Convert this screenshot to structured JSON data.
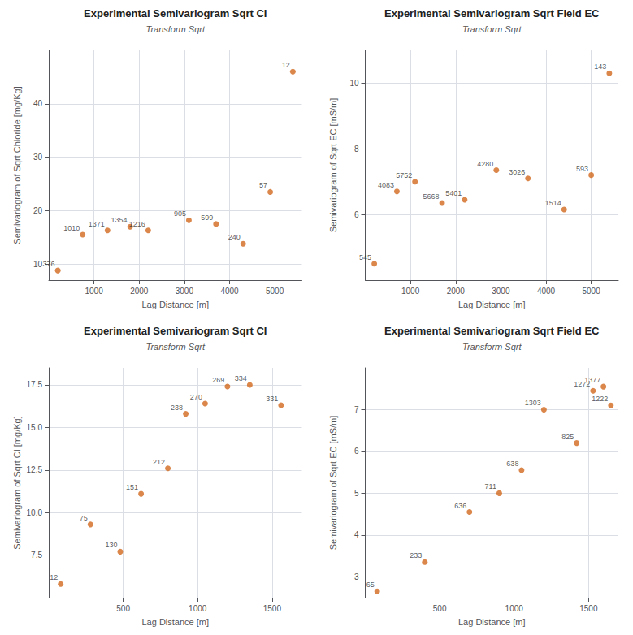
{
  "chart_data": [
    {
      "type": "scatter",
      "title": "Experimental Semivariogram Sqrt CI",
      "subtitle": "Transform Sqrt",
      "xlabel": "Lag Distance [m]",
      "ylabel": "Semivariogram of Sqrt Chloride [mg/Kg]",
      "x": [
        200,
        750,
        1300,
        1800,
        2200,
        3100,
        3700,
        4300,
        4900,
        5400
      ],
      "values": [
        8.8,
        15.5,
        16.3,
        17.0,
        16.3,
        18.2,
        17.5,
        13.8,
        23.5,
        46.0
      ],
      "annotations": [
        "376",
        "1010",
        "1371",
        "1354",
        "1216",
        "905",
        "599",
        "240",
        "57",
        "12"
      ],
      "color": "#D2691E",
      "xlim": [
        0,
        5600
      ],
      "ylim": [
        7,
        50
      ],
      "xticks": [
        1000,
        2000,
        3000,
        4000,
        5000
      ],
      "yticks": [
        10,
        20,
        30,
        40
      ],
      "grid": true
    },
    {
      "type": "scatter",
      "title": "Experimental Semivariogram Sqrt Field EC",
      "subtitle": "Transform Sqrt",
      "xlabel": "Lag Distance [m]",
      "ylabel": "Semivariogram of Sqrt EC [mS/m]",
      "x": [
        200,
        700,
        1100,
        1700,
        2200,
        2900,
        3600,
        4400,
        5000,
        5400
      ],
      "values": [
        4.5,
        6.7,
        7.0,
        6.35,
        6.45,
        7.35,
        7.1,
        6.15,
        7.2,
        10.3
      ],
      "annotations": [
        "545",
        "4083",
        "5752",
        "5668",
        "5401",
        "4280",
        "3026",
        "1514",
        "593",
        "143"
      ],
      "color": "#D2691E",
      "xlim": [
        0,
        5600
      ],
      "ylim": [
        4,
        11
      ],
      "xticks": [
        1000,
        2000,
        3000,
        4000,
        5000
      ],
      "yticks": [
        6,
        8,
        10
      ],
      "grid": true
    },
    {
      "type": "scatter",
      "title": "Experimental Semivariogram Sqrt CI",
      "subtitle": "Transform Sqrt",
      "xlabel": "Lag Distance [m]",
      "ylabel": "Semivariogram of Sqrt CI [mg/Kg]",
      "x": [
        80,
        280,
        480,
        620,
        800,
        920,
        1050,
        1200,
        1350,
        1560
      ],
      "values": [
        5.8,
        9.3,
        7.7,
        11.1,
        12.6,
        15.8,
        16.4,
        17.4,
        17.5,
        16.3
      ],
      "annotations": [
        "12",
        "75",
        "130",
        "151",
        "212",
        "238",
        "270",
        "269",
        "334",
        "331"
      ],
      "color": "#D2691E",
      "xlim": [
        0,
        1700
      ],
      "ylim": [
        5,
        18.5
      ],
      "xticks": [
        500,
        1000,
        1500
      ],
      "yticks": [
        7.5,
        {
          "value": 10,
          "label": "10.0"
        },
        12.5,
        {
          "value": 15,
          "label": "15.0"
        },
        17.5
      ],
      "grid": true
    },
    {
      "type": "scatter",
      "title": "Experimental Semivariogram Sqrt Field EC",
      "subtitle": "Transform Sqrt",
      "xlabel": "Lag Distance [m]",
      "ylabel": "Semivariogram of Sqrt EC [mS/m]",
      "x": [
        80,
        400,
        700,
        900,
        1050,
        1200,
        1420,
        1530,
        1600,
        1650
      ],
      "values": [
        2.65,
        3.35,
        4.55,
        5.0,
        5.55,
        7.0,
        6.2,
        7.45,
        7.55,
        7.1
      ],
      "annotations": [
        "65",
        "233",
        "636",
        "711",
        "638",
        "1303",
        "825",
        "1272",
        "1377",
        "1222"
      ],
      "color": "#D2691E",
      "xlim": [
        0,
        1700
      ],
      "ylim": [
        2.5,
        8
      ],
      "xticks": [
        500,
        1000,
        1500
      ],
      "yticks": [
        3,
        4,
        5,
        6,
        7
      ],
      "grid": true
    }
  ]
}
